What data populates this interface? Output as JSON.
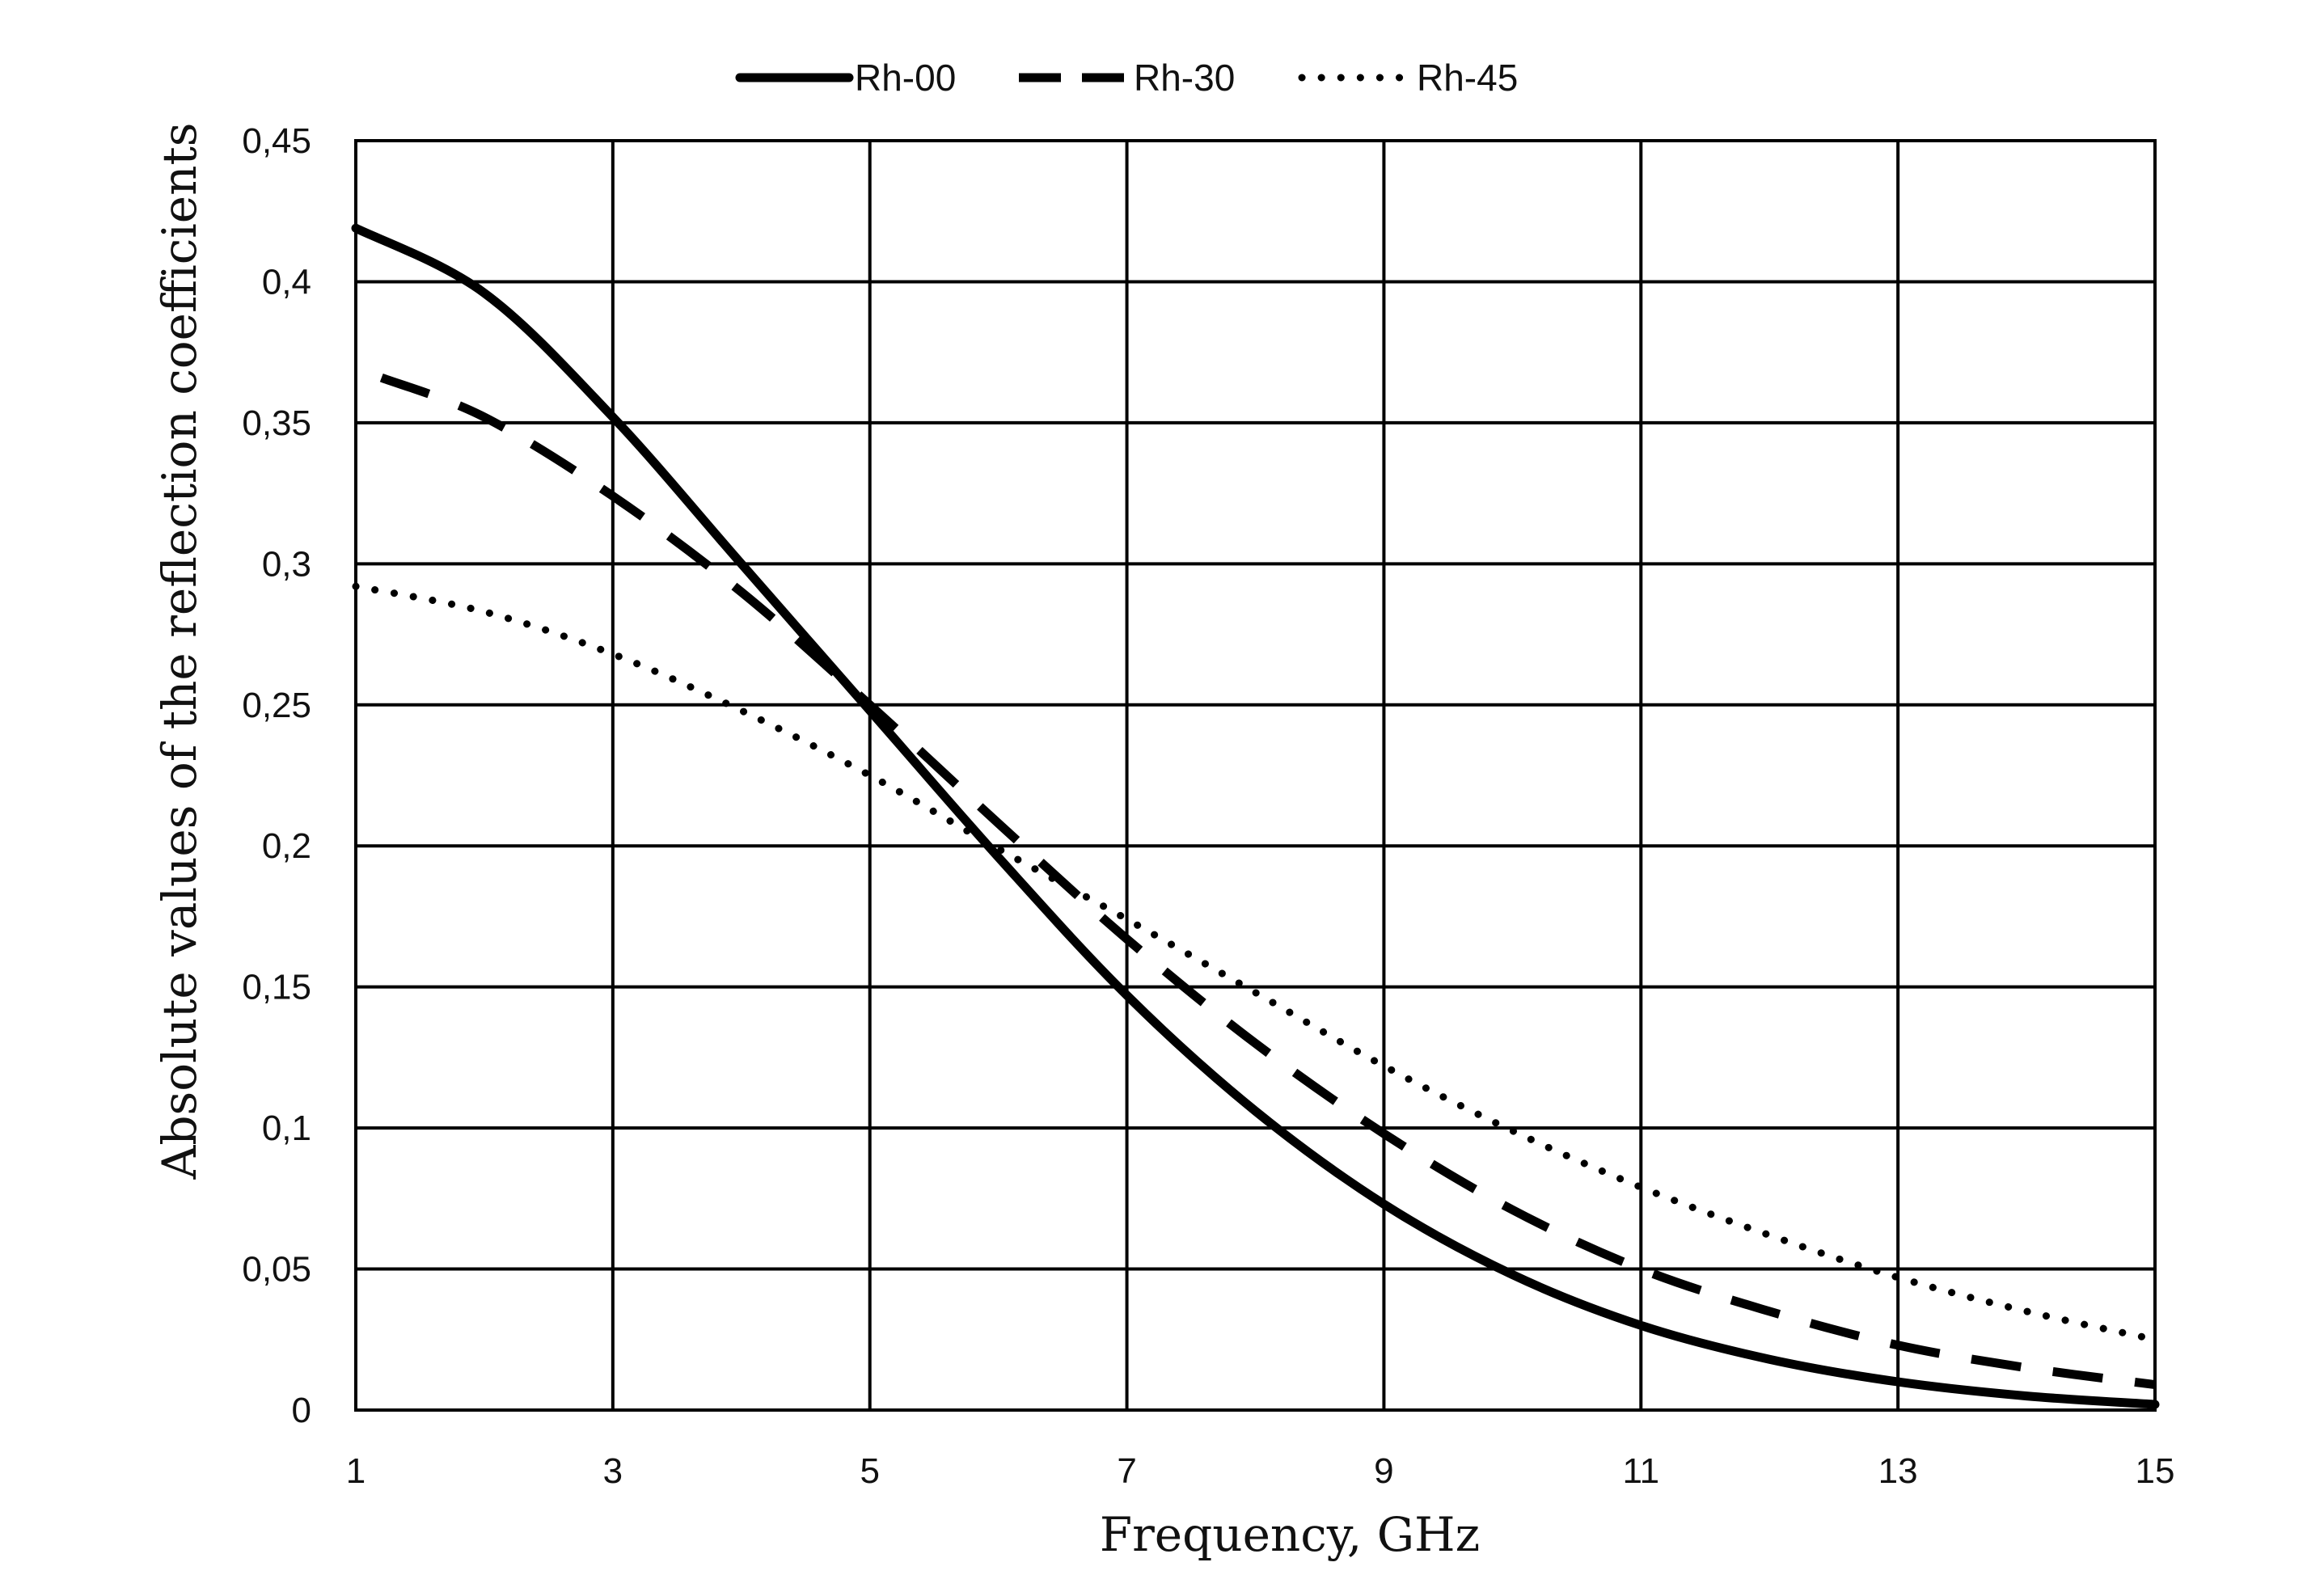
{
  "chart_data": {
    "type": "line",
    "title": "",
    "xlabel": "Frequency, GHz",
    "ylabel": "Absolute values of the reflection coefficients",
    "xlim": [
      1,
      15
    ],
    "ylim": [
      0,
      0.45
    ],
    "x_ticks": [
      1,
      3,
      5,
      7,
      9,
      11,
      13,
      15
    ],
    "x_tick_labels": [
      "1",
      "3",
      "5",
      "7",
      "9",
      "11",
      "13",
      "15"
    ],
    "y_ticks": [
      0,
      0.05,
      0.1,
      0.15,
      0.2,
      0.25,
      0.3,
      0.35,
      0.4,
      0.45
    ],
    "y_tick_labels": [
      "0",
      "0,05",
      "0,1",
      "0,15",
      "0,2",
      "0,25",
      "0,3",
      "0,35",
      "0,4",
      "0,45"
    ],
    "grid": true,
    "legend_position": "top-center",
    "series": [
      {
        "name": "Rh-00",
        "style": "solid",
        "color": "#000000",
        "x": [
          1,
          2,
          3,
          4,
          5,
          6,
          7,
          8,
          9,
          10,
          11,
          12,
          13,
          14,
          15
        ],
        "y": [
          0.419,
          0.396,
          0.352,
          0.3,
          0.248,
          0.196,
          0.147,
          0.106,
          0.073,
          0.048,
          0.03,
          0.018,
          0.01,
          0.005,
          0.002
        ]
      },
      {
        "name": "Rh-30",
        "style": "dashed",
        "color": "#000000",
        "x": [
          1.2,
          2,
          3,
          4,
          5,
          6,
          7,
          8,
          9,
          10,
          11,
          12,
          13,
          14,
          15
        ],
        "y": [
          0.366,
          0.352,
          0.324,
          0.29,
          0.25,
          0.208,
          0.167,
          0.13,
          0.098,
          0.071,
          0.05,
          0.035,
          0.023,
          0.015,
          0.009
        ]
      },
      {
        "name": "Rh-45",
        "style": "dotted",
        "color": "#000000",
        "x": [
          1,
          2,
          3,
          4,
          5,
          6,
          7,
          8,
          9,
          10,
          11,
          12,
          13,
          14,
          15
        ],
        "y": [
          0.292,
          0.283,
          0.268,
          0.248,
          0.225,
          0.199,
          0.174,
          0.148,
          0.122,
          0.099,
          0.079,
          0.062,
          0.047,
          0.035,
          0.025
        ]
      }
    ]
  }
}
